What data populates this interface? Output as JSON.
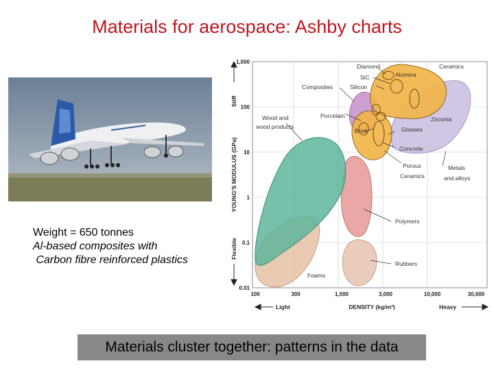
{
  "slide": {
    "title": "Materials for aerospace: Ashby charts",
    "caption_weight": "Weight = 650 tonnes",
    "caption_line2": "Al-based composites with",
    "caption_line3": " Carbon fibre reinforced plastics",
    "banner": "Materials cluster together: patterns in the data"
  },
  "photo": {
    "subject": "airbus-a380-landing",
    "sky": "#7e8fa2",
    "ground": "#7a7a55",
    "body": "#eef0f2",
    "tail": "#2a5aa8"
  },
  "ashby_chart": {
    "y_axis_title": "YOUNG'S MODULUS (GPa)",
    "x_axis_title": "DENSITY (kg/m³)",
    "y_ticks": [
      "1,000",
      "100",
      "10",
      "1",
      "0.1",
      "0.01"
    ],
    "x_ticks": [
      "100",
      "300",
      "1,000",
      "3,000",
      "10,000",
      "30,000"
    ],
    "stiff_label": "Stiff",
    "flexible_label": "Flexible",
    "light_label": "Light",
    "heavy_label": "Heavy",
    "labels": {
      "diamond": "Diamond",
      "sic": "SiC",
      "silicon": "Silicon",
      "alumina": "Alumina",
      "ceramics": "Ceramics",
      "composites": "Composites",
      "porcelain": "Porcelain",
      "zirconia": "Zirconia",
      "wood1": "Wood and",
      "wood2": "wood products",
      "brick": "Brick",
      "glasses": "Glasses",
      "concrete": "Concrete",
      "porous1": "Porous",
      "porous2": "Ceramics",
      "metals1": "Metals",
      "metals2": "and alloys",
      "polymers": "Polymers",
      "rubbers": "Rubbers",
      "foams": "Foams"
    },
    "colors": {
      "ceramics": "#f2b445",
      "composites": "#c896cc",
      "metals": "#cdc0e2",
      "wood": "#5fb59c",
      "polymers": "#e3928e",
      "foams": "#e5c1a6",
      "rubbers": "#e8c7b2"
    }
  }
}
